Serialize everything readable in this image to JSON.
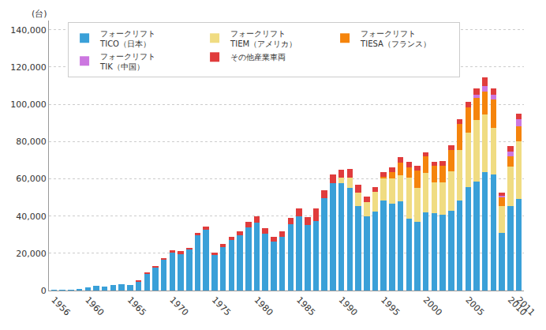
{
  "chart_data": {
    "type": "bar",
    "stacked": true,
    "grid": true,
    "legend": "top-left",
    "y_label": "(台)",
    "categories": [
      "1956",
      null,
      null,
      null,
      "1960",
      null,
      null,
      null,
      null,
      "1965",
      null,
      null,
      null,
      null,
      "1970",
      null,
      null,
      null,
      null,
      "1975",
      null,
      null,
      null,
      null,
      "1980",
      null,
      null,
      null,
      null,
      "1985",
      null,
      null,
      null,
      null,
      "1990",
      null,
      null,
      null,
      null,
      "1995",
      null,
      null,
      null,
      null,
      "2000",
      null,
      null,
      null,
      null,
      "2005",
      null,
      null,
      null,
      null,
      "2010",
      "2011"
    ],
    "ylim": [
      0,
      145000
    ],
    "yticks": [
      0,
      {
        "value": 20000,
        "label": "20,000"
      },
      {
        "value": 40000,
        "label": "40,000"
      },
      {
        "value": 60000,
        "label": "60,000"
      },
      {
        "value": 80000,
        "label": "80,000"
      },
      {
        "value": 100000,
        "label": "100,000"
      },
      {
        "value": 120000,
        "label": "120,000"
      },
      {
        "value": 140000,
        "label": "140,000"
      }
    ],
    "series": [
      {
        "name": "フォークリフト\nTICO（日本）",
        "color": "#3aa0d8",
        "values": [
          300,
          400,
          300,
          700,
          1500,
          2500,
          2200,
          2800,
          3500,
          3000,
          5000,
          9000,
          12500,
          16500,
          20500,
          19500,
          22000,
          29500,
          32500,
          19000,
          23500,
          27000,
          29500,
          34000,
          36500,
          30500,
          26500,
          29000,
          35500,
          40000,
          35000,
          37500,
          49500,
          57500,
          57500,
          55000,
          45500,
          40000,
          42500,
          48500,
          46500,
          48000,
          38500,
          37000,
          42000,
          41500,
          40500,
          43000,
          48500,
          55500,
          58500,
          63500,
          62500,
          31000,
          45500,
          49000
        ]
      },
      {
        "name": "フォークリフト\nTIEM（アメリカ）",
        "color": "#f0dc82",
        "values": [
          0,
          0,
          0,
          0,
          0,
          0,
          0,
          0,
          0,
          0,
          0,
          0,
          0,
          0,
          0,
          0,
          0,
          0,
          0,
          0,
          0,
          0,
          0,
          0,
          0,
          0,
          0,
          0,
          0,
          0,
          0,
          0,
          0,
          0,
          3000,
          5500,
          7000,
          7500,
          10500,
          11500,
          13500,
          14000,
          22000,
          18000,
          21000,
          16500,
          17500,
          21000,
          27000,
          29500,
          33000,
          31000,
          25000,
          14500,
          21000,
          31000
        ]
      },
      {
        "name": "フォークリフト\nTIESA（フランス）",
        "color": "#f5840c",
        "values": [
          0,
          0,
          0,
          0,
          0,
          0,
          0,
          0,
          0,
          0,
          0,
          0,
          0,
          0,
          0,
          0,
          0,
          0,
          0,
          0,
          0,
          0,
          0,
          0,
          0,
          0,
          0,
          0,
          0,
          0,
          0,
          0,
          0,
          0,
          0,
          0,
          0,
          0,
          0,
          1000,
          3500,
          6500,
          5500,
          9500,
          9000,
          9000,
          9000,
          11500,
          14000,
          13500,
          12000,
          12500,
          15000,
          4500,
          5500,
          8000
        ]
      },
      {
        "name": "フォークリフト\nTIK（中国）",
        "color": "#cc77e0",
        "values": [
          0,
          0,
          0,
          0,
          0,
          0,
          0,
          0,
          0,
          0,
          0,
          0,
          0,
          0,
          0,
          0,
          0,
          0,
          0,
          0,
          0,
          0,
          0,
          0,
          0,
          0,
          0,
          0,
          0,
          0,
          0,
          0,
          0,
          0,
          0,
          0,
          0,
          0,
          0,
          0,
          0,
          0,
          0,
          0,
          0,
          0,
          0,
          0,
          0,
          0,
          1500,
          3000,
          2500,
          1000,
          2500,
          4000
        ]
      },
      {
        "name": "その他産業車両",
        "color": "#e03c3c",
        "values": [
          0,
          0,
          0,
          0,
          0,
          0,
          0,
          0,
          0,
          0,
          300,
          500,
          700,
          1000,
          1200,
          1500,
          1000,
          1500,
          1800,
          1500,
          1500,
          2000,
          2500,
          3000,
          3500,
          3000,
          2500,
          3000,
          3500,
          4000,
          4500,
          6500,
          4500,
          5000,
          4500,
          5000,
          4500,
          3000,
          2500,
          2500,
          2500,
          3000,
          3000,
          2500,
          2000,
          2000,
          2500,
          2500,
          2500,
          3000,
          3500,
          4500,
          3500,
          1500,
          3000,
          3000
        ]
      }
    ]
  }
}
